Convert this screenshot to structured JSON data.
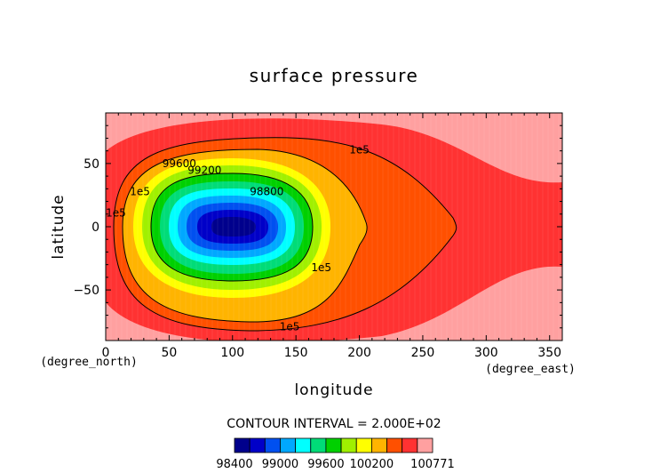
{
  "chart_data": {
    "type": "heatmap",
    "subtype": "filled-contour",
    "title": "surface pressure",
    "xlabel": "longitude",
    "ylabel": "latitude",
    "x_units": "(degree_east)",
    "y_units": "(degree_north)",
    "xlim": [
      0,
      360
    ],
    "ylim": [
      -90,
      90
    ],
    "x_ticks": [
      0,
      50,
      100,
      150,
      200,
      250,
      300,
      350
    ],
    "y_ticks": [
      -50,
      0,
      50
    ],
    "grid": false,
    "contour_interval_text": "CONTOUR INTERVAL = 2.000E+02",
    "low_center": {
      "lon": 103,
      "lat": 0,
      "value": 98400
    },
    "levels": [
      98400,
      98600,
      98800,
      99000,
      99200,
      99400,
      99600,
      99800,
      100000,
      100200,
      100400,
      100600,
      100771
    ],
    "colorbar_labels": [
      "98400",
      "99000",
      "99600",
      "100200",
      "100771"
    ],
    "colors": [
      "#00008c",
      "#0000c8",
      "#0050f0",
      "#00a8ff",
      "#00ffff",
      "#00dc78",
      "#00d000",
      "#a0f000",
      "#ffff00",
      "#ffb400",
      "#ff5000",
      "#ff3232",
      "#ffa0a0"
    ],
    "contour_labels": [
      {
        "text": "1e5",
        "lon": 200,
        "lat": 58
      },
      {
        "text": "1e5",
        "lon": 27,
        "lat": 25
      },
      {
        "text": "1e5",
        "lon": 8,
        "lat": 8
      },
      {
        "text": "1e5",
        "lon": 170,
        "lat": -35
      },
      {
        "text": "1e5",
        "lon": 145,
        "lat": -82
      },
      {
        "text": "99600",
        "lon": 58,
        "lat": 47
      },
      {
        "text": "99200",
        "lon": 78,
        "lat": 42
      },
      {
        "text": "98800",
        "lon": 127,
        "lat": 25
      }
    ]
  }
}
